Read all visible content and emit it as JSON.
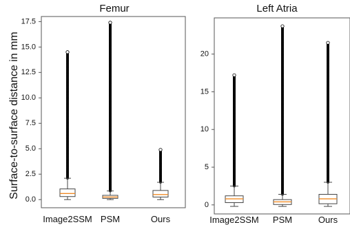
{
  "figure": {
    "ylabel": "Surface-to-surface distance in mm"
  },
  "chart_data": [
    {
      "type": "box",
      "title": "Femur",
      "categories": [
        "Image2SSM",
        "PSM",
        "Ours"
      ],
      "ylim": [
        -0.8,
        18.0
      ],
      "yticks": [
        0.0,
        2.5,
        5.0,
        7.5,
        10.0,
        12.5,
        15.0,
        17.5
      ],
      "ytick_labels": [
        "0.0",
        "2.5",
        "5.0",
        "7.5",
        "10.0",
        "12.5",
        "15.0",
        "17.5"
      ],
      "grid": false,
      "boxes": [
        {
          "category": "Image2SSM",
          "whisker_low": 0.0,
          "q1": 0.3,
          "median": 0.6,
          "q3": 1.05,
          "whisker_high": 2.1,
          "outlier_max": 14.5
        },
        {
          "category": "PSM",
          "whisker_low": 0.0,
          "q1": 0.12,
          "median": 0.25,
          "q3": 0.42,
          "whisker_high": 0.85,
          "outlier_max": 17.4
        },
        {
          "category": "Ours",
          "whisker_low": 0.0,
          "q1": 0.25,
          "median": 0.5,
          "q3": 0.9,
          "whisker_high": 1.7,
          "outlier_max": 4.9
        }
      ]
    },
    {
      "type": "box",
      "title": "Left Atria",
      "categories": [
        "Image2SSM",
        "PSM",
        "Ours"
      ],
      "ylim": [
        -1.2,
        24.8
      ],
      "yticks": [
        0,
        5,
        10,
        15,
        20
      ],
      "ytick_labels": [
        "0",
        "5",
        "10",
        "15",
        "20"
      ],
      "grid": false,
      "boxes": [
        {
          "category": "Image2SSM",
          "whisker_low": -0.2,
          "q1": 0.3,
          "median": 0.8,
          "q3": 1.2,
          "whisker_high": 2.5,
          "outlier_max": 17.2
        },
        {
          "category": "PSM",
          "whisker_low": -0.2,
          "q1": 0.05,
          "median": 0.4,
          "q3": 0.7,
          "whisker_high": 1.4,
          "outlier_max": 23.7
        },
        {
          "category": "Ours",
          "whisker_low": -0.2,
          "q1": 0.15,
          "median": 0.8,
          "q3": 1.4,
          "whisker_high": 3.0,
          "outlier_max": 21.5
        }
      ]
    }
  ],
  "colors": {
    "median": "#f08a24",
    "box": "#444444",
    "outliers": "#000000",
    "axes": "#555555"
  }
}
